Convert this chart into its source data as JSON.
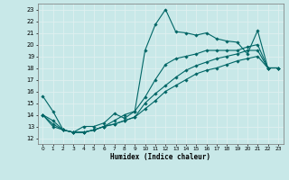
{
  "xlabel": "Humidex (Indice chaleur)",
  "xlim": [
    -0.5,
    23.5
  ],
  "ylim": [
    11.5,
    23.5
  ],
  "yticks": [
    12,
    13,
    14,
    15,
    16,
    17,
    18,
    19,
    20,
    21,
    22,
    23
  ],
  "xticks": [
    0,
    1,
    2,
    3,
    4,
    5,
    6,
    7,
    8,
    9,
    10,
    11,
    12,
    13,
    14,
    15,
    16,
    17,
    18,
    19,
    20,
    21,
    22,
    23
  ],
  "background_color": "#c8e8e8",
  "grid_color": "#e8f4f4",
  "line_color": "#006666",
  "lines": [
    {
      "x": [
        0,
        1,
        2,
        3,
        4,
        5,
        6,
        7,
        8,
        9,
        10,
        11,
        12,
        13,
        14,
        15,
        16,
        17,
        18,
        19,
        20,
        21,
        22,
        23
      ],
      "y": [
        15.6,
        14.3,
        12.7,
        12.5,
        13.0,
        13.0,
        13.3,
        14.1,
        13.7,
        14.3,
        19.5,
        21.7,
        23.0,
        21.1,
        21.0,
        20.8,
        21.0,
        20.5,
        20.3,
        20.2,
        19.2,
        21.2,
        18.0,
        18.0
      ]
    },
    {
      "x": [
        0,
        1,
        2,
        3,
        4,
        5,
        6,
        7,
        8,
        9,
        10,
        11,
        12,
        13,
        14,
        15,
        16,
        17,
        18,
        19,
        20,
        21,
        22,
        23
      ],
      "y": [
        14.0,
        13.0,
        12.7,
        12.5,
        12.5,
        12.7,
        13.0,
        13.2,
        13.5,
        13.8,
        14.5,
        15.2,
        16.0,
        16.5,
        17.0,
        17.5,
        17.8,
        18.0,
        18.3,
        18.6,
        18.8,
        19.0,
        18.0,
        18.0
      ]
    },
    {
      "x": [
        0,
        1,
        2,
        3,
        4,
        5,
        6,
        7,
        8,
        9,
        10,
        11,
        12,
        13,
        14,
        15,
        16,
        17,
        18,
        19,
        20,
        21,
        22,
        23
      ],
      "y": [
        14.0,
        13.5,
        12.7,
        12.5,
        12.5,
        12.7,
        13.0,
        13.5,
        14.0,
        14.3,
        15.5,
        17.0,
        18.3,
        18.8,
        19.0,
        19.2,
        19.5,
        19.5,
        19.5,
        19.5,
        19.8,
        20.0,
        18.0,
        18.0
      ]
    },
    {
      "x": [
        0,
        1,
        2,
        3,
        4,
        5,
        6,
        7,
        8,
        9,
        10,
        11,
        12,
        13,
        14,
        15,
        16,
        17,
        18,
        19,
        20,
        21,
        22,
        23
      ],
      "y": [
        14.0,
        13.2,
        12.7,
        12.5,
        12.5,
        12.7,
        13.0,
        13.2,
        13.5,
        13.8,
        15.0,
        15.8,
        16.5,
        17.2,
        17.8,
        18.2,
        18.5,
        18.8,
        19.0,
        19.2,
        19.5,
        19.5,
        18.0,
        18.0
      ]
    }
  ]
}
